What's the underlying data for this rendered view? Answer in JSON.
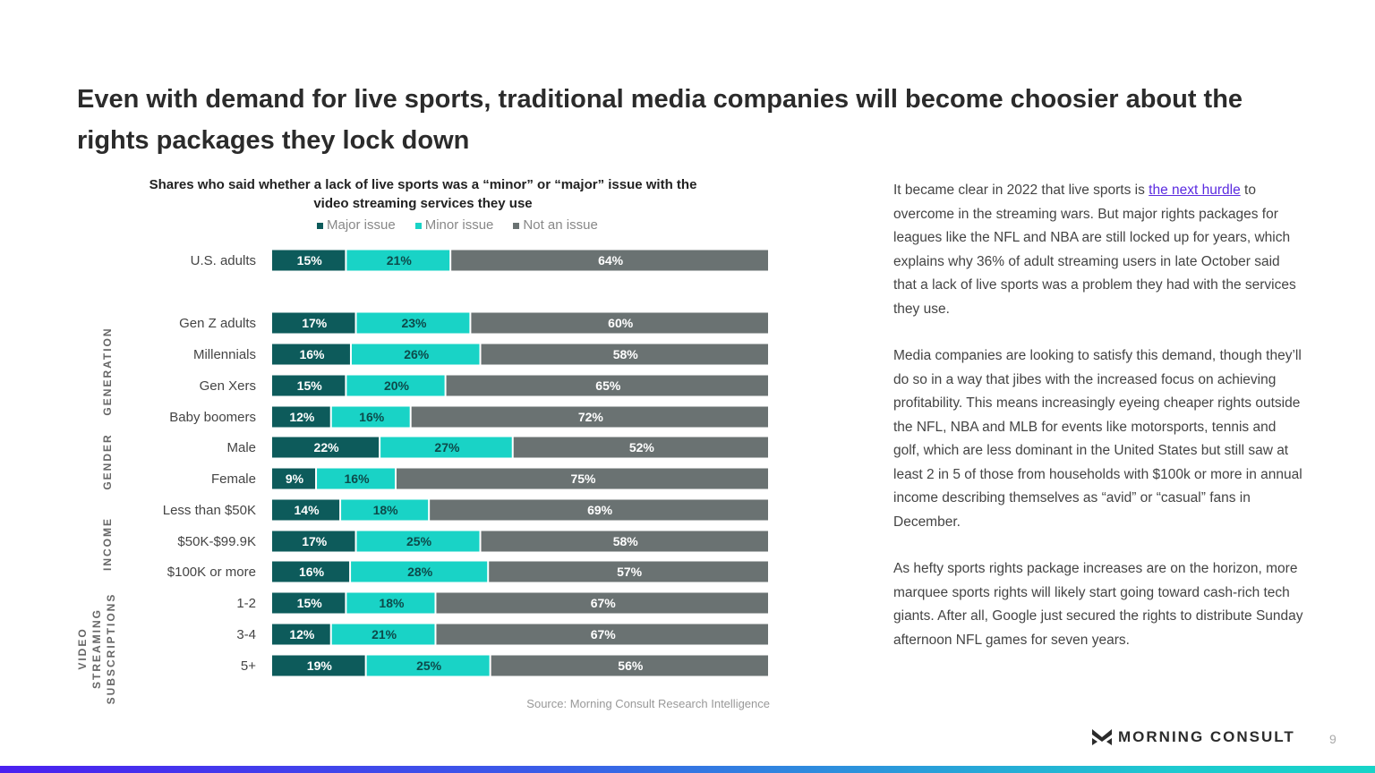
{
  "title": "Even with demand for live sports, traditional media companies will become choosier about the rights packages they lock down",
  "chart_data": {
    "type": "bar",
    "orientation": "horizontal",
    "stacked": true,
    "title": "Shares who said whether a lack of live sports was a “minor” or “major” issue with the video streaming services they use",
    "legend_placement": "top",
    "categories": [
      "U.S. adults",
      "Gen Z adults",
      "Millennials",
      "Gen Xers",
      "Baby boomers",
      "Male",
      "Female",
      "Less than $50K",
      "$50K-$99.9K",
      "$100K or more",
      "1-2",
      "3-4",
      "5+"
    ],
    "groups": [
      {
        "label": "GENERATION",
        "categories": [
          "Gen Z adults",
          "Millennials",
          "Gen Xers",
          "Baby boomers"
        ]
      },
      {
        "label": "GENDER",
        "categories": [
          "Male",
          "Female"
        ]
      },
      {
        "label": "INCOME",
        "categories": [
          "Less than $50K",
          "$50K-$99.9K",
          "$100K or more"
        ]
      },
      {
        "label": "VIDEO STREAMING SUBSCRIPTIONS",
        "categories": [
          "1-2",
          "3-4",
          "5+"
        ]
      }
    ],
    "series": [
      {
        "name": "Major issue",
        "color": "#0d5b5b",
        "values": [
          15,
          17,
          16,
          15,
          12,
          22,
          9,
          14,
          17,
          16,
          15,
          12,
          19
        ]
      },
      {
        "name": "Minor issue",
        "color": "#19d3c6",
        "values": [
          21,
          23,
          26,
          20,
          16,
          27,
          16,
          18,
          25,
          28,
          18,
          21,
          25
        ]
      },
      {
        "name": "Not an issue",
        "color": "#6a7272",
        "values": [
          64,
          60,
          58,
          65,
          72,
          52,
          75,
          69,
          58,
          57,
          67,
          67,
          56
        ]
      }
    ],
    "value_suffix": "%",
    "source": "Source: Morning Consult Research Intelligence"
  },
  "body": {
    "p1_before": "It became clear in 2022 that live sports is ",
    "p1_link": "the next hurdle",
    "p1_after": " to overcome in the streaming wars. But major rights packages for leagues like the NFL and NBA are still locked up for years, which explains why 36% of adult streaming users in late October said that a lack of live sports was a problem they had with the services they use.",
    "p2": "Media companies are looking to satisfy this demand, though they’ll do so in a way that jibes with the increased focus on achieving profitability. This means increasingly eyeing cheaper rights outside the NFL, NBA and MLB for events like motorsports, tennis and golf, which are less dominant in the United States but still saw at least 2 in 5 of those from households with $100k or more in annual income describing themselves as “avid” or “casual” fans in December.",
    "p3": "As hefty sports rights package increases are on the horizon, more marquee sports rights will likely start going toward cash-rich tech giants. After all, Google just secured the rights to distribute Sunday afternoon NFL games for seven years."
  },
  "footer": {
    "logo": "MORNING CONSULT",
    "page": "9"
  }
}
